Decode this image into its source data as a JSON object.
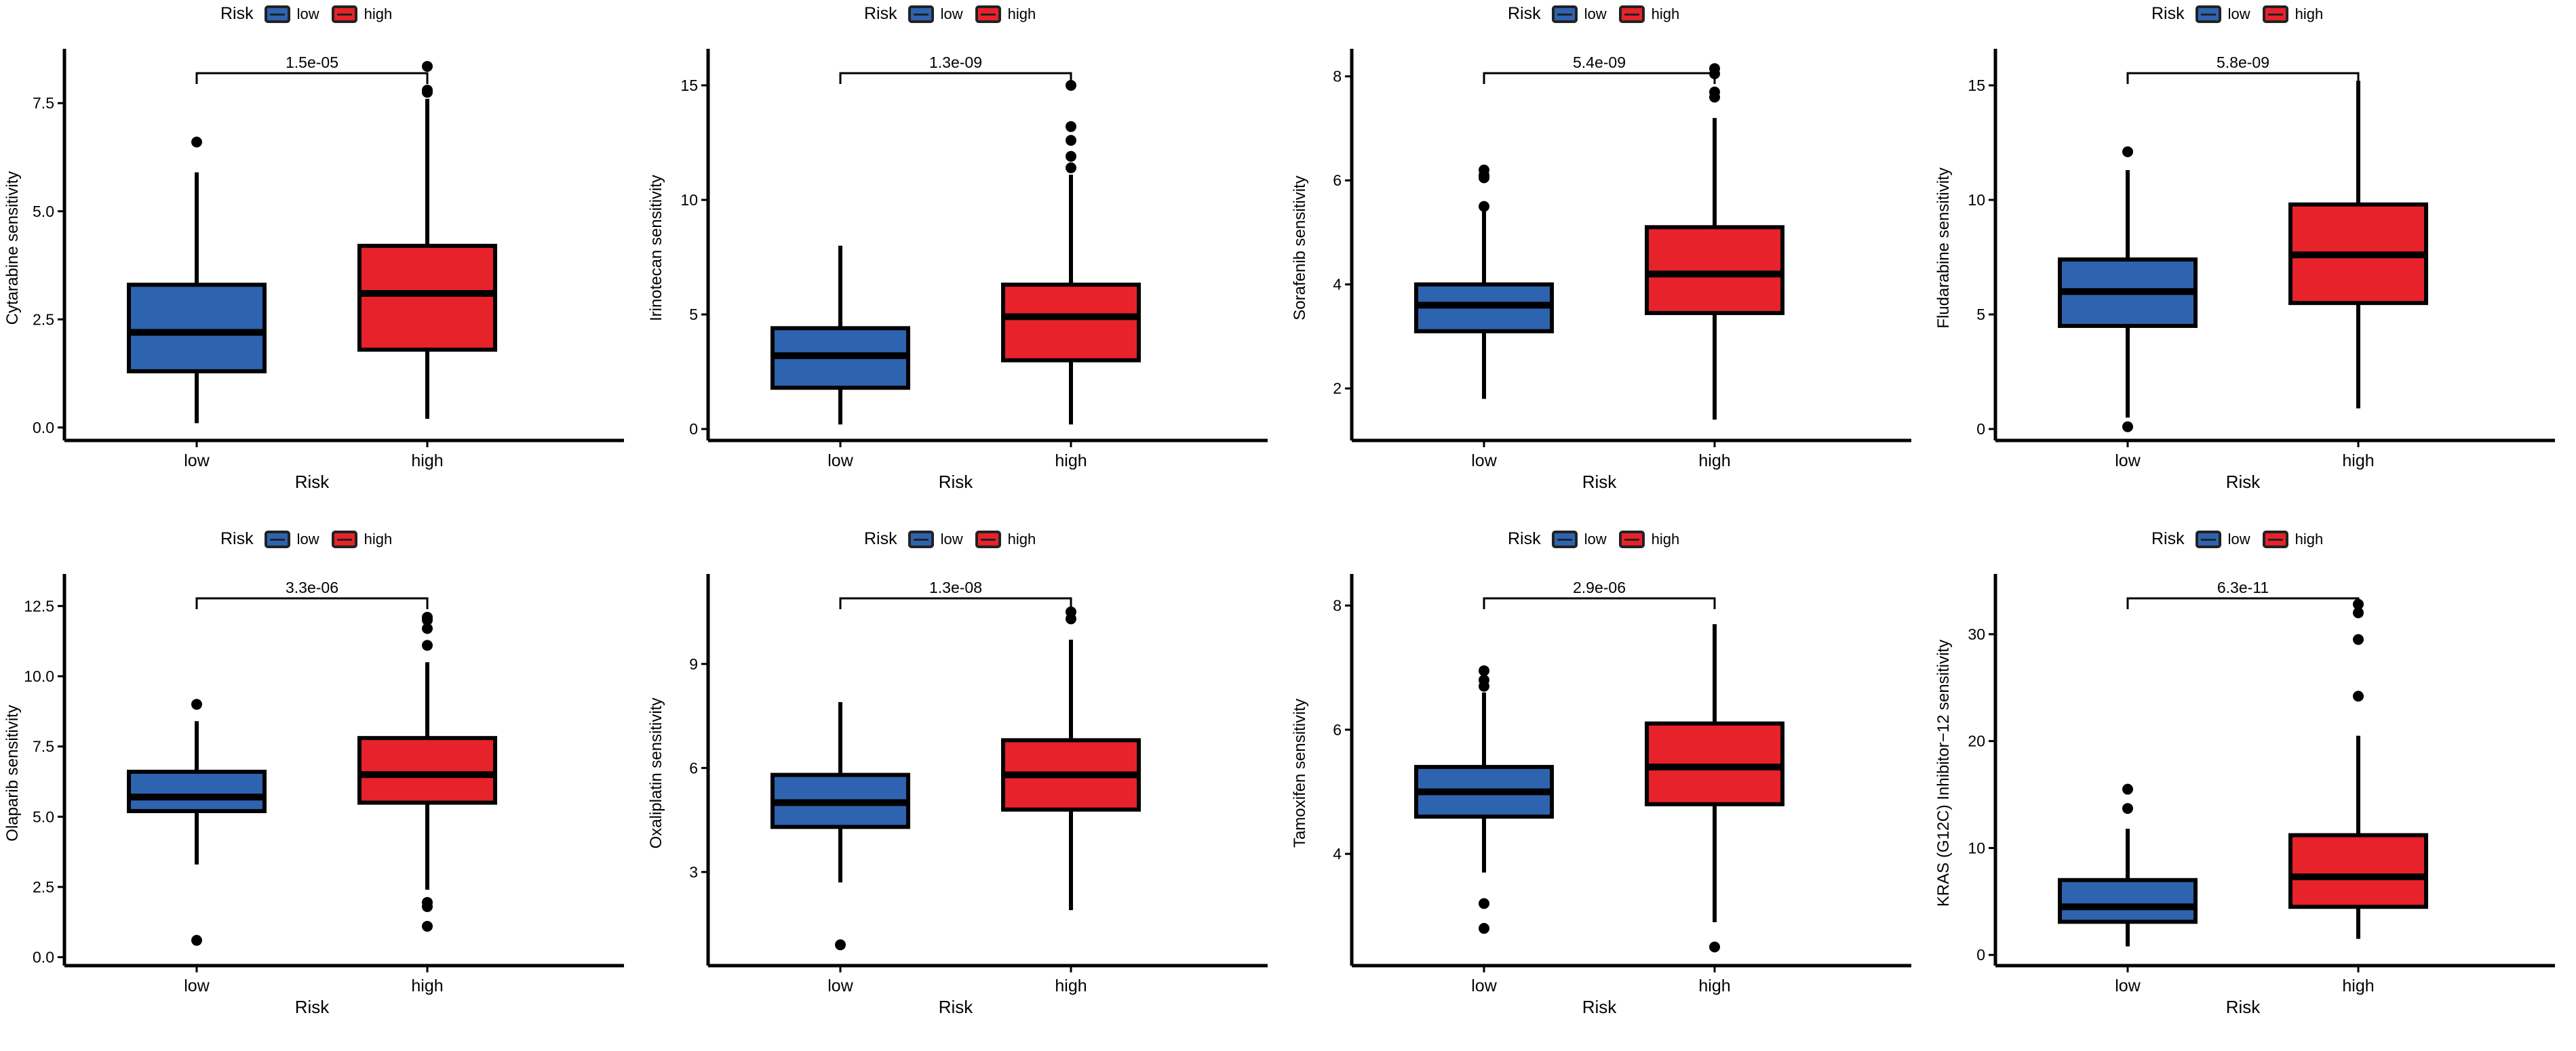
{
  "chart_data": [
    {
      "type": "box",
      "ylabel": "Cytarabine sensitivity",
      "xlabel": "Risk",
      "legend_title": "Risk",
      "legend_position": "top",
      "categories": [
        "low",
        "high"
      ],
      "colors": {
        "low": "#2e63b0",
        "high": "#e8222a"
      },
      "yticks": [
        0.0,
        2.5,
        5.0,
        7.5
      ],
      "ytick_labels": [
        "0.0",
        "2.5",
        "5.0",
        "7.5"
      ],
      "ylim": [
        -0.3,
        8.6
      ],
      "pvalue": "1.5e-05",
      "boxes": [
        {
          "group": "low",
          "min": 0.1,
          "q1": 1.3,
          "median": 2.2,
          "q3": 3.3,
          "max": 5.9,
          "outliers": [
            6.6
          ]
        },
        {
          "group": "high",
          "min": 0.2,
          "q1": 1.8,
          "median": 3.1,
          "q3": 4.2,
          "max": 7.6,
          "outliers": [
            7.75,
            7.8,
            8.35
          ]
        }
      ]
    },
    {
      "type": "box",
      "ylabel": "Irinotecan sensitivity",
      "xlabel": "Risk",
      "legend_title": "Risk",
      "legend_position": "top",
      "categories": [
        "low",
        "high"
      ],
      "colors": {
        "low": "#2e63b0",
        "high": "#e8222a"
      },
      "yticks": [
        0,
        5,
        10,
        15
      ],
      "ytick_labels": [
        "0",
        "5",
        "10",
        "15"
      ],
      "ylim": [
        -0.5,
        16.3
      ],
      "pvalue": "1.3e-09",
      "boxes": [
        {
          "group": "low",
          "min": 0.2,
          "q1": 1.8,
          "median": 3.2,
          "q3": 4.4,
          "max": 8.0,
          "outliers": []
        },
        {
          "group": "high",
          "min": 0.2,
          "q1": 3.0,
          "median": 4.9,
          "q3": 6.3,
          "max": 11.1,
          "outliers": [
            11.4,
            11.9,
            12.6,
            13.2,
            15.0
          ]
        }
      ]
    },
    {
      "type": "box",
      "ylabel": "Sorafenib sensitivity",
      "xlabel": "Risk",
      "legend_title": "Risk",
      "legend_position": "top",
      "categories": [
        "low",
        "high"
      ],
      "colors": {
        "low": "#2e63b0",
        "high": "#e8222a"
      },
      "yticks": [
        2,
        4,
        6,
        8
      ],
      "ytick_labels": [
        "2",
        "4",
        "6",
        "8"
      ],
      "ylim": [
        1.0,
        8.4
      ],
      "pvalue": "5.4e-09",
      "boxes": [
        {
          "group": "low",
          "min": 1.8,
          "q1": 3.1,
          "median": 3.6,
          "q3": 4.0,
          "max": 5.5,
          "outliers": [
            5.5,
            6.05,
            6.1,
            6.2
          ]
        },
        {
          "group": "high",
          "min": 1.4,
          "q1": 3.45,
          "median": 4.2,
          "q3": 5.1,
          "max": 7.2,
          "outliers": [
            7.6,
            7.7,
            8.05,
            8.15
          ]
        }
      ]
    },
    {
      "type": "box",
      "ylabel": "Fludarabine sensitivity",
      "xlabel": "Risk",
      "legend_title": "Risk",
      "legend_position": "top",
      "categories": [
        "low",
        "high"
      ],
      "colors": {
        "low": "#2e63b0",
        "high": "#e8222a"
      },
      "yticks": [
        0,
        5,
        10,
        15
      ],
      "ytick_labels": [
        "0",
        "5",
        "10",
        "15"
      ],
      "ylim": [
        -0.5,
        16.3
      ],
      "pvalue": "5.8e-09",
      "boxes": [
        {
          "group": "low",
          "min": 0.5,
          "q1": 4.5,
          "median": 6.0,
          "q3": 7.4,
          "max": 11.3,
          "outliers": [
            0.1,
            12.1
          ]
        },
        {
          "group": "high",
          "min": 0.9,
          "q1": 5.5,
          "median": 7.6,
          "q3": 9.8,
          "max": 15.2,
          "outliers": []
        }
      ]
    },
    {
      "type": "box",
      "ylabel": "Olaparib sensitivity",
      "xlabel": "Risk",
      "legend_title": "Risk",
      "legend_position": "top",
      "categories": [
        "low",
        "high"
      ],
      "colors": {
        "low": "#2e63b0",
        "high": "#e8222a"
      },
      "yticks": [
        0.0,
        2.5,
        5.0,
        7.5,
        10.0,
        12.5
      ],
      "ytick_labels": [
        "0.0",
        "2.5",
        "5.0",
        "7.5",
        "10.0",
        "12.5"
      ],
      "ylim": [
        -0.3,
        13.4
      ],
      "pvalue": "3.3e-06",
      "boxes": [
        {
          "group": "low",
          "min": 3.3,
          "q1": 5.2,
          "median": 5.7,
          "q3": 6.6,
          "max": 8.4,
          "outliers": [
            0.6,
            9.0
          ]
        },
        {
          "group": "high",
          "min": 2.4,
          "q1": 5.5,
          "median": 6.5,
          "q3": 7.8,
          "max": 10.5,
          "outliers": [
            1.1,
            1.8,
            1.95,
            11.1,
            11.7,
            12.0,
            12.1
          ]
        }
      ]
    },
    {
      "type": "box",
      "ylabel": "Oxaliplatin sensitivity",
      "xlabel": "Risk",
      "legend_title": "Risk",
      "legend_position": "top",
      "categories": [
        "low",
        "high"
      ],
      "colors": {
        "low": "#2e63b0",
        "high": "#e8222a"
      },
      "yticks": [
        3,
        6,
        9
      ],
      "ytick_labels": [
        "3",
        "6",
        "9"
      ],
      "ylim": [
        0.3,
        11.4
      ],
      "pvalue": "1.3e-08",
      "boxes": [
        {
          "group": "low",
          "min": 2.7,
          "q1": 4.3,
          "median": 5.0,
          "q3": 5.8,
          "max": 7.9,
          "outliers": [
            0.9
          ]
        },
        {
          "group": "high",
          "min": 1.9,
          "q1": 4.8,
          "median": 5.8,
          "q3": 6.8,
          "max": 9.7,
          "outliers": [
            10.3,
            10.5
          ]
        }
      ]
    },
    {
      "type": "box",
      "ylabel": "Tamoxifen sensitivity",
      "xlabel": "Risk",
      "legend_title": "Risk",
      "legend_position": "top",
      "categories": [
        "low",
        "high"
      ],
      "colors": {
        "low": "#2e63b0",
        "high": "#e8222a"
      },
      "yticks": [
        4,
        6,
        8
      ],
      "ytick_labels": [
        "4",
        "6",
        "8"
      ],
      "ylim": [
        2.2,
        8.4
      ],
      "pvalue": "2.9e-06",
      "boxes": [
        {
          "group": "low",
          "min": 3.7,
          "q1": 4.6,
          "median": 5.0,
          "q3": 5.4,
          "max": 6.6,
          "outliers": [
            2.8,
            3.2,
            6.7,
            6.8,
            6.95
          ]
        },
        {
          "group": "high",
          "min": 2.9,
          "q1": 4.8,
          "median": 5.4,
          "q3": 6.1,
          "max": 7.7,
          "outliers": [
            2.5
          ]
        }
      ]
    },
    {
      "type": "box",
      "ylabel": "KRAS (G12C) Inhibitor−12 sensitivity",
      "xlabel": "Risk",
      "legend_title": "Risk",
      "legend_position": "top",
      "categories": [
        "low",
        "high"
      ],
      "colors": {
        "low": "#2e63b0",
        "high": "#e8222a"
      },
      "yticks": [
        0,
        10,
        20,
        30
      ],
      "ytick_labels": [
        "0",
        "10",
        "20",
        "30"
      ],
      "ylim": [
        -1.0,
        35.0
      ],
      "pvalue": "6.3e-11",
      "boxes": [
        {
          "group": "low",
          "min": 0.8,
          "q1": 3.1,
          "median": 4.5,
          "q3": 7.0,
          "max": 11.8,
          "outliers": [
            13.7,
            15.5
          ]
        },
        {
          "group": "high",
          "min": 1.5,
          "q1": 4.5,
          "median": 7.3,
          "q3": 11.2,
          "max": 20.5,
          "outliers": [
            24.2,
            29.5,
            32.0,
            32.8
          ]
        }
      ]
    }
  ]
}
